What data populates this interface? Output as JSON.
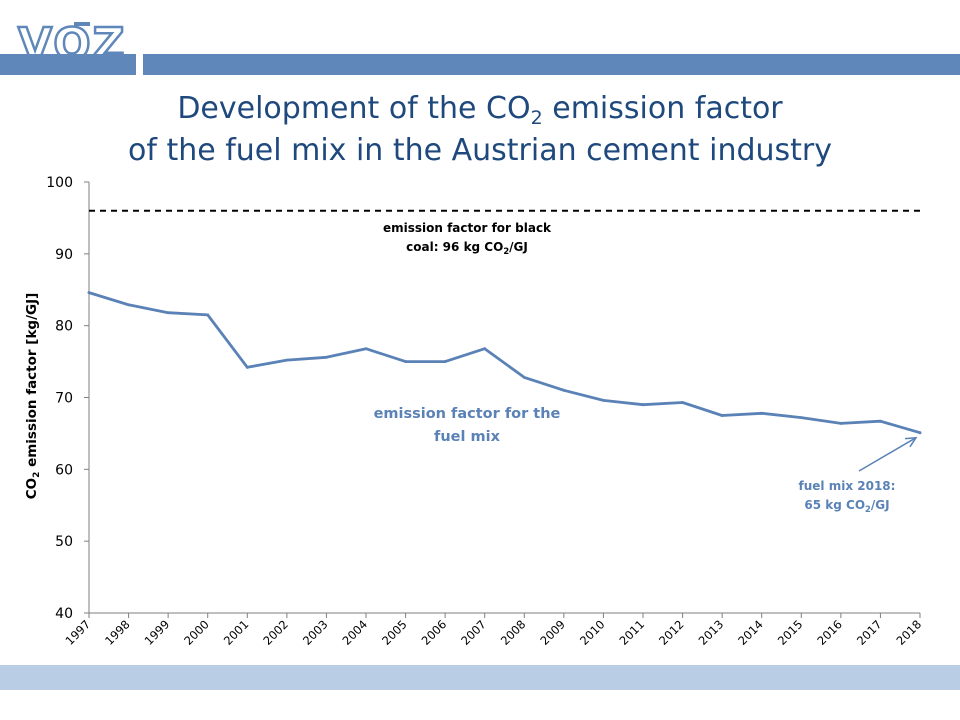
{
  "logo": {
    "text": "VOZ"
  },
  "colors": {
    "brand": "#5f87ba",
    "title": "#1f497d",
    "line": "#5a82b6",
    "footer_band": "#b9cde5"
  },
  "chart_data": {
    "type": "line",
    "title_line1_pre": "Development of the CO",
    "title_line1_sub": "2",
    "title_line1_post": " emission factor",
    "title_line2": "of the fuel mix in the Austrian cement industry",
    "ylabel_pre": "CO",
    "ylabel_sub": "2",
    "ylabel_post": " emission factor [kg/GJ]",
    "xlabel": "",
    "ylim": [
      40,
      100
    ],
    "yticks": [
      40,
      50,
      60,
      70,
      80,
      90,
      100
    ],
    "grid": false,
    "categories": [
      "1997",
      "1998",
      "1999",
      "2000",
      "2001",
      "2002",
      "2003",
      "2004",
      "2005",
      "2006",
      "2007",
      "2008",
      "2009",
      "2010",
      "2011",
      "2012",
      "2013",
      "2014",
      "2015",
      "2016",
      "2017",
      "2018"
    ],
    "series": [
      {
        "name": "emission factor for the fuel mix",
        "values": [
          84.6,
          82.9,
          81.8,
          81.5,
          74.2,
          75.2,
          75.6,
          76.8,
          75.0,
          75.0,
          76.8,
          72.8,
          71.0,
          69.6,
          69.0,
          69.3,
          67.5,
          67.8,
          67.2,
          66.4,
          66.7,
          65.1
        ]
      }
    ],
    "reference_line": {
      "value": 96,
      "style": "dashed",
      "color": "#000000"
    },
    "annotations": {
      "coal_line1": "emission factor for black",
      "coal_line2_pre": "coal: 96 kg CO",
      "coal_line2_sub": "2",
      "coal_line2_post": "/GJ",
      "mix_line1": "emission factor for the",
      "mix_line2": "fuel mix",
      "latest_line1": "fuel mix 2018:",
      "latest_line2_pre": "65 kg CO",
      "latest_line2_sub": "2",
      "latest_line2_post": "/GJ"
    }
  }
}
